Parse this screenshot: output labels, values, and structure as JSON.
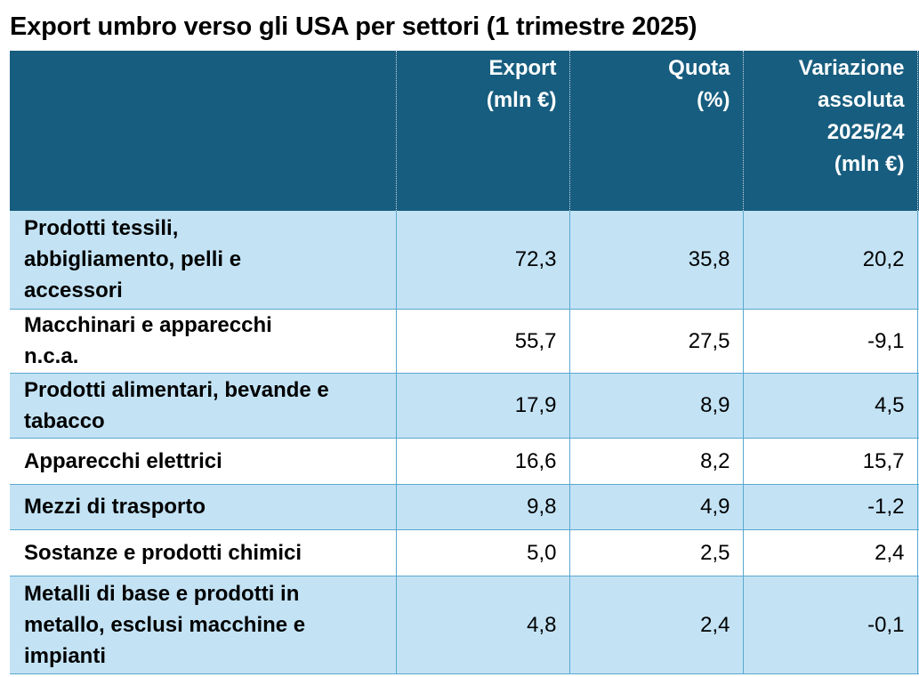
{
  "title": "Export umbro verso gli USA per settori (1 trimestre 2025)",
  "header": {
    "col_sector": "",
    "col_export_l1": "Export",
    "col_export_l2": "(mln €)",
    "col_quota_l1": "Quota",
    "col_quota_l2": "(%)",
    "col_var_l1": "Variazione",
    "col_var_l2": "assoluta",
    "col_var_l3": "2025/24",
    "col_var_l4": "(mln €)"
  },
  "rows": [
    {
      "l1": "Prodotti tessili,",
      "l2": "abbigliamento, pelli e",
      "l3": "accessori",
      "export": "72,3",
      "quota": "35,8",
      "var": "20,2"
    },
    {
      "l1": "Macchinari e apparecchi",
      "l2": "n.c.a.",
      "export": "55,7",
      "quota": "27,5",
      "var": "-9,1"
    },
    {
      "l1": "Prodotti alimentari, bevande e",
      "l2": "tabacco",
      "export": "17,9",
      "quota": "8,9",
      "var": "4,5"
    },
    {
      "l1": "Apparecchi elettrici",
      "export": "16,6",
      "quota": "8,2",
      "var": "15,7"
    },
    {
      "l1": "Mezzi di trasporto",
      "export": "9,8",
      "quota": "4,9",
      "var": "-1,2"
    },
    {
      "l1": "Sostanze e prodotti chimici",
      "export": "5,0",
      "quota": "2,5",
      "var": "2,4"
    },
    {
      "l1": "Metalli di base e prodotti in",
      "l2": "metallo, esclusi macchine e",
      "l3": "impianti",
      "export": "4,8",
      "quota": "2,4",
      "var": "-0,1"
    }
  ],
  "colors": {
    "header_bg": "#175d7f",
    "row_shade": "#c3e3f5",
    "row_plain": "#ffffff",
    "grid": "#5aa7cf"
  }
}
